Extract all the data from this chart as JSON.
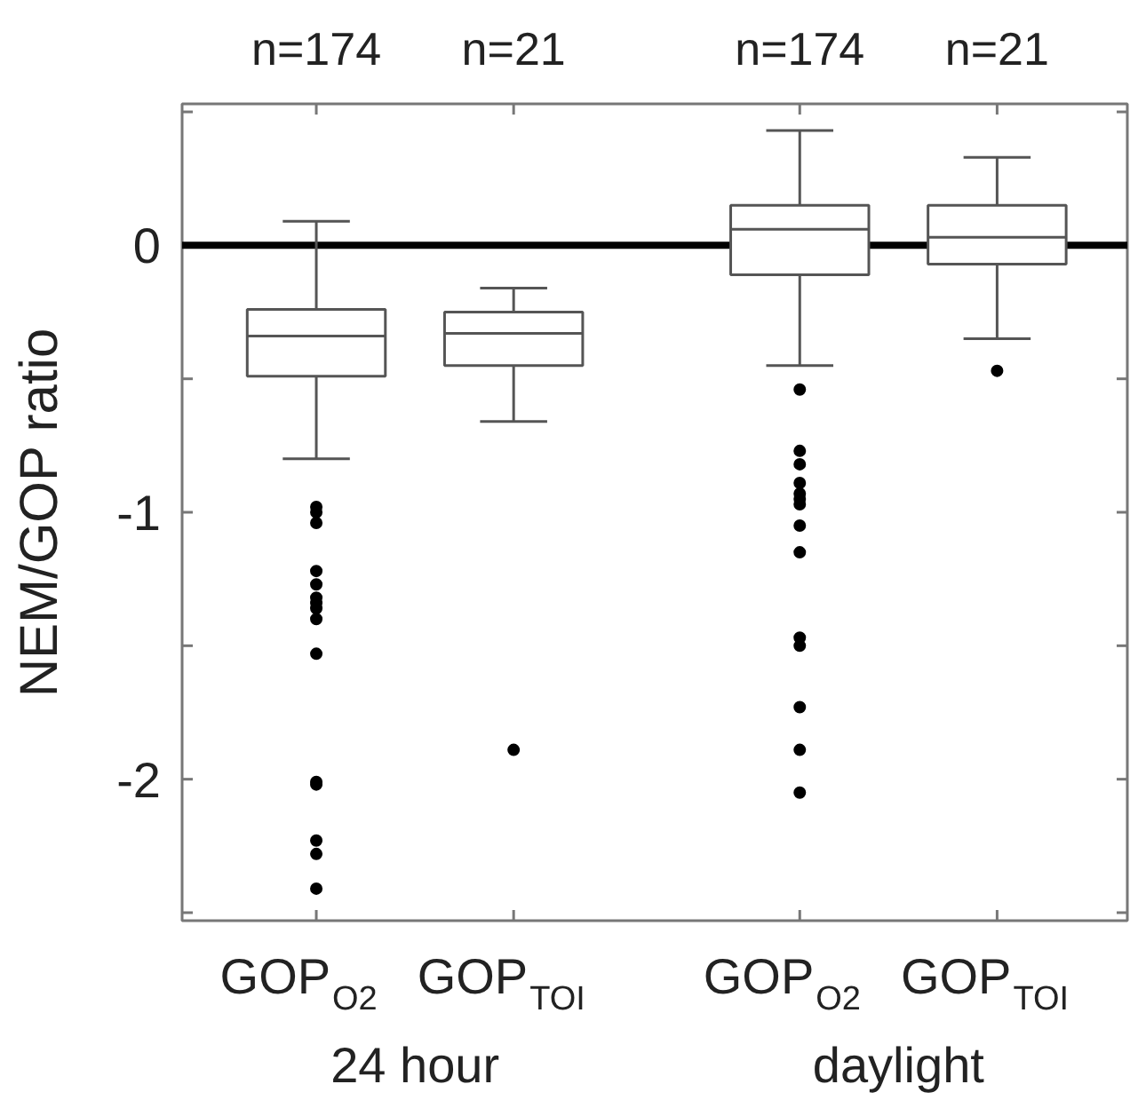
{
  "chart_data": {
    "type": "box",
    "ylabel": "NEM/GOP ratio",
    "categories": [
      "GOP$_{O2}$",
      "GOP$_{TOI}$",
      "GOP$_{O2}$",
      "GOP$_{TOI}$"
    ],
    "boxes": [
      {
        "low": -0.8,
        "q1": -0.49,
        "median": -0.34,
        "q3": -0.24,
        "high": 0.09,
        "outliers": [
          -0.98,
          -1.0,
          -1.04,
          -1.22,
          -1.27,
          -1.32,
          -1.34,
          -1.36,
          -1.4,
          -1.53,
          -2.01,
          -2.02,
          -2.23,
          -2.28,
          -2.41
        ]
      },
      {
        "low": -0.66,
        "q1": -0.45,
        "median": -0.33,
        "q3": -0.25,
        "high": -0.16,
        "outliers": [
          -1.89
        ]
      },
      {
        "low": -0.45,
        "q1": -0.11,
        "median": 0.06,
        "q3": 0.15,
        "high": 0.43,
        "outliers": [
          -0.54,
          -0.77,
          -0.82,
          -0.89,
          -0.93,
          -0.95,
          -0.97,
          -1.05,
          -1.15,
          -1.47,
          -1.5,
          -1.73,
          -1.89,
          -2.05
        ]
      },
      {
        "low": -0.35,
        "q1": -0.07,
        "median": 0.03,
        "q3": 0.15,
        "high": 0.33,
        "outliers": [
          -0.47
        ]
      }
    ],
    "ylim": [
      -2.53,
      0.53
    ],
    "yticks": [
      {
        "value": 0.5,
        "label": null
      },
      0,
      {
        "value": -0.5,
        "label": null
      },
      {
        "value": -1,
        "label": "-1"
      },
      {
        "value": -1.5,
        "label": null
      },
      {
        "value": -2,
        "label": "-2"
      },
      {
        "value": -2.5,
        "label": null
      }
    ],
    "ref_lines": [
      {
        "axis": "y",
        "value": 0,
        "color": "#000000"
      }
    ],
    "annotations": [
      "n=174",
      "n=21",
      "n=174",
      "n=21",
      "24 hour",
      "daylight"
    ],
    "grid": false
  }
}
